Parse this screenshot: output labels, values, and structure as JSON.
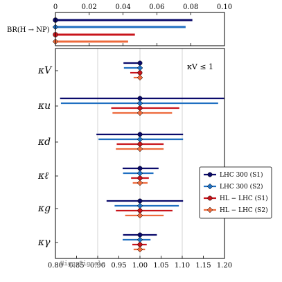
{
  "chart_data": [
    {
      "type": "bar",
      "orientation": "horizontal",
      "ylabel": "BR(H → NP)",
      "xlim": [
        0,
        0.1
      ],
      "xticks": [
        "0",
        "0.02",
        "0.04",
        "0.06",
        "0.08",
        "0.10"
      ],
      "tick_side": "top",
      "series": [
        {
          "name": "LHC 300 (S1)",
          "color": "#0a0a6b",
          "value": 0.081
        },
        {
          "name": "LHC 300 (S2)",
          "color": "#1f6fc1",
          "value": 0.077
        },
        {
          "name": "HL − LHC (S1)",
          "color": "#c8141b",
          "value": 0.047
        },
        {
          "name": "HL − LHC (S2)",
          "color": "#ed6a3c",
          "value": 0.043
        }
      ]
    },
    {
      "type": "scatter",
      "subtype": "error_bars_horizontal",
      "xlim": [
        0.8,
        1.2
      ],
      "xticks": [
        "0.80",
        "0.85",
        "0.90",
        "0.95",
        "1.00",
        "1.05",
        "1.10",
        "1.15",
        "1.20"
      ],
      "grid": "vertical",
      "annotation": "κV ≤ 1",
      "watermark": "HiggsSignals",
      "legend_position": "right",
      "categories": [
        "κV",
        "κu",
        "κd",
        "κℓ",
        "κg",
        "κγ"
      ],
      "series": [
        {
          "name": "LHC 300 (S1)",
          "color": "#0a0a6b",
          "marker": "circle",
          "center": [
            1.0,
            1.0,
            1.0,
            1.0,
            1.0,
            1.0
          ],
          "low": [
            0.961,
            0.811,
            0.897,
            0.959,
            0.921,
            0.96
          ],
          "high": [
            1.0,
            1.199,
            1.102,
            1.044,
            1.102,
            1.04
          ]
        },
        {
          "name": "LHC 300 (S2)",
          "color": "#1f6fc1",
          "marker": "diamond",
          "center": [
            1.0,
            1.0,
            1.0,
            1.0,
            1.0,
            1.0
          ],
          "low": [
            0.962,
            0.813,
            0.902,
            0.96,
            0.94,
            0.959
          ],
          "high": [
            1.0,
            1.185,
            1.102,
            1.032,
            1.092,
            1.025
          ]
        },
        {
          "name": "HL − LHC (S1)",
          "color": "#c8141b",
          "marker": "circle",
          "center": [
            1.0,
            1.0,
            1.0,
            1.0,
            1.0,
            1.0
          ],
          "low": [
            0.977,
            0.932,
            0.945,
            0.979,
            0.943,
            0.982
          ],
          "high": [
            1.0,
            1.093,
            1.056,
            1.021,
            1.077,
            1.016
          ]
        },
        {
          "name": "HL − LHC (S2)",
          "color": "#ed6a3c",
          "marker": "diamond",
          "center": [
            1.0,
            1.0,
            1.0,
            1.0,
            1.0,
            1.0
          ],
          "low": [
            0.985,
            0.935,
            0.943,
            0.983,
            0.965,
            0.985
          ],
          "high": [
            1.0,
            1.076,
            1.056,
            1.018,
            1.056,
            1.012
          ]
        }
      ]
    }
  ]
}
